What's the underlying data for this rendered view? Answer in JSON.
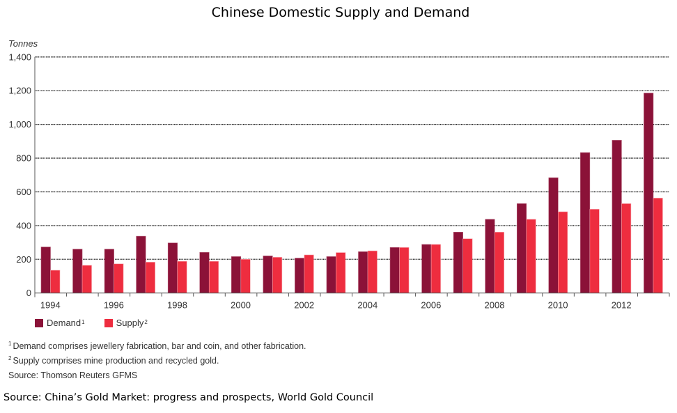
{
  "chart_data": {
    "type": "bar",
    "title": "Chinese Domestic Supply and Demand",
    "xlabel": "",
    "ylabel": "Tonnes",
    "ylim": [
      0,
      1400
    ],
    "yticks": [
      0,
      200,
      400,
      600,
      800,
      1000,
      1200,
      1400
    ],
    "ytick_labels": [
      "0",
      "200",
      "400",
      "600",
      "800",
      "1,000",
      "1,200",
      "1,400"
    ],
    "grid": "horizontal dotted",
    "legend": "bottom-left",
    "categories": [
      "1994",
      "1995",
      "1996",
      "1997",
      "1998",
      "1999",
      "2000",
      "2001",
      "2002",
      "2003",
      "2004",
      "2005",
      "2006",
      "2007",
      "2008",
      "2009",
      "2010",
      "2011",
      "2012",
      "2013"
    ],
    "xtick_labels": [
      "1994",
      "",
      "1996",
      "",
      "1998",
      "",
      "2000",
      "",
      "2002",
      "",
      "2004",
      "",
      "2006",
      "",
      "2008",
      "",
      "2010",
      "",
      "2012",
      ""
    ],
    "series": [
      {
        "name": "Demand",
        "footnote_mark": "1",
        "color": "#8b1238",
        "values": [
          273,
          260,
          260,
          337,
          297,
          241,
          216,
          220,
          207,
          216,
          245,
          270,
          288,
          361,
          437,
          530,
          684,
          833,
          906,
          1186
        ]
      },
      {
        "name": "Supply",
        "footnote_mark": "2",
        "color": "#ee2d3f",
        "values": [
          135,
          164,
          173,
          183,
          188,
          188,
          200,
          212,
          226,
          240,
          250,
          270,
          288,
          322,
          361,
          437,
          482,
          497,
          530,
          563
        ]
      }
    ]
  },
  "footnotes": [
    {
      "mark": "1",
      "text": "Demand comprises jewellery fabrication, bar and coin, and other fabrication."
    },
    {
      "mark": "2",
      "text": "Supply comprises mine production and recycled gold."
    }
  ],
  "inner_source": "Source: Thomson Reuters GFMS",
  "outer_source": "Source: China’s Gold Market: progress and prospects, World Gold Council"
}
